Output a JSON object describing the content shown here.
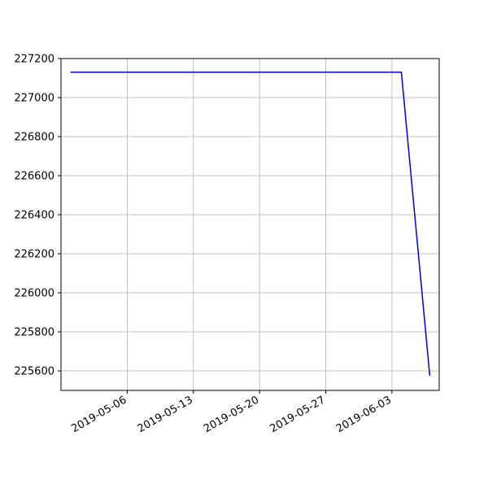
{
  "chart_data": {
    "type": "line",
    "title": "",
    "xlabel": "",
    "ylabel": "",
    "x_axis_type": "date",
    "xlim": [
      "2019-04-29",
      "2019-06-08"
    ],
    "ylim": [
      225500,
      227200
    ],
    "x_ticks": [
      "2019-05-06",
      "2019-05-13",
      "2019-05-20",
      "2019-05-27",
      "2019-06-03"
    ],
    "y_ticks": [
      225600,
      225800,
      226000,
      226200,
      226400,
      226600,
      226800,
      227000,
      227200
    ],
    "grid": true,
    "legend": "none",
    "series": [
      {
        "color": "#0000cc",
        "x": [
          "2019-04-30",
          "2019-06-04",
          "2019-06-07"
        ],
        "y": [
          227130,
          227130,
          225575
        ]
      }
    ]
  }
}
